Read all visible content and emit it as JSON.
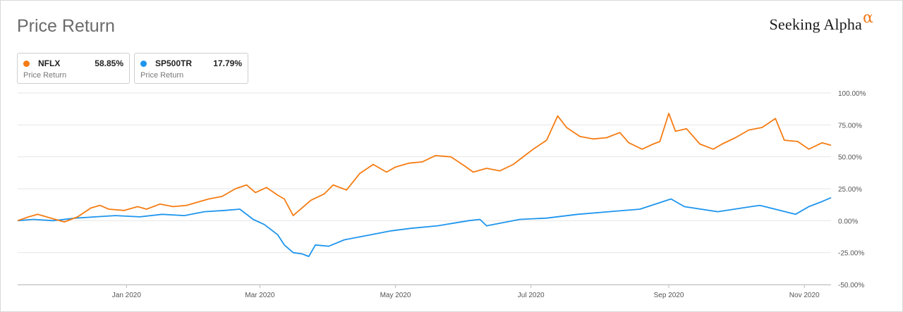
{
  "header": {
    "title": "Price Return",
    "logo_text": "Seeking Alpha",
    "logo_alpha": "α"
  },
  "legend": [
    {
      "symbol": "NFLX",
      "value": "58.85%",
      "subtitle": "Price Return",
      "color": "#f57c13"
    },
    {
      "symbol": "SP500TR",
      "value": "17.79%",
      "subtitle": "Price Return",
      "color": "#1e95ee"
    }
  ],
  "chart_data": {
    "type": "line",
    "title": "Price Return",
    "xlabel": "",
    "ylabel": "",
    "ylim": [
      -50,
      100
    ],
    "y_ticks": [
      100,
      75,
      50,
      25,
      0,
      -25,
      -50
    ],
    "y_tick_labels": [
      "100.00%",
      "75.00%",
      "50.00%",
      "25.00%",
      "0.00%",
      "-25.00%",
      "-50.00%"
    ],
    "y_axis_position": "right",
    "x_tick_labels": [
      "Jan 2020",
      "Mar 2020",
      "May 2020",
      "Jul 2020",
      "Sep 2020",
      "Nov 2020"
    ],
    "x_tick_dates": [
      "2020-01-01",
      "2020-03-01",
      "2020-05-01",
      "2020-07-01",
      "2020-09-01",
      "2020-11-01"
    ],
    "x_range": [
      "2019-11-13",
      "2020-11-13"
    ],
    "grid": "horizontal",
    "series": [
      {
        "name": "NFLX",
        "color": "#f57c13",
        "x": [
          "2019-11-13",
          "2019-11-18",
          "2019-11-22",
          "2019-11-28",
          "2019-12-04",
          "2019-12-10",
          "2019-12-16",
          "2019-12-20",
          "2019-12-24",
          "2019-12-31",
          "2020-01-06",
          "2020-01-10",
          "2020-01-16",
          "2020-01-22",
          "2020-01-28",
          "2020-02-03",
          "2020-02-07",
          "2020-02-13",
          "2020-02-19",
          "2020-02-24",
          "2020-02-28",
          "2020-03-04",
          "2020-03-09",
          "2020-03-12",
          "2020-03-16",
          "2020-03-20",
          "2020-03-24",
          "2020-03-30",
          "2020-04-03",
          "2020-04-09",
          "2020-04-15",
          "2020-04-21",
          "2020-04-27",
          "2020-05-01",
          "2020-05-07",
          "2020-05-13",
          "2020-05-19",
          "2020-05-26",
          "2020-06-01",
          "2020-06-05",
          "2020-06-11",
          "2020-06-17",
          "2020-06-23",
          "2020-06-29",
          "2020-07-02",
          "2020-07-08",
          "2020-07-13",
          "2020-07-17",
          "2020-07-23",
          "2020-07-29",
          "2020-08-04",
          "2020-08-10",
          "2020-08-14",
          "2020-08-20",
          "2020-08-25",
          "2020-08-28",
          "2020-09-01",
          "2020-09-04",
          "2020-09-09",
          "2020-09-15",
          "2020-09-21",
          "2020-09-25",
          "2020-10-01",
          "2020-10-07",
          "2020-10-13",
          "2020-10-19",
          "2020-10-23",
          "2020-10-29",
          "2020-11-03",
          "2020-11-09",
          "2020-11-13"
        ],
        "y": [
          0,
          3,
          5,
          2,
          -1,
          3,
          10,
          12,
          9,
          8,
          11,
          9,
          13,
          11,
          12,
          15,
          17,
          19,
          25,
          28,
          22,
          26,
          20,
          17,
          4,
          10,
          16,
          21,
          28,
          24,
          37,
          44,
          38,
          42,
          45,
          46,
          51,
          50,
          43,
          38,
          41,
          39,
          44,
          52,
          56,
          63,
          82,
          73,
          66,
          64,
          65,
          69,
          61,
          56,
          60,
          62,
          84,
          70,
          72,
          60,
          56,
          60,
          65,
          71,
          73,
          80,
          63,
          62,
          56,
          61,
          59
        ]
      },
      {
        "name": "SP500TR",
        "color": "#1e95ee",
        "x": [
          "2019-11-13",
          "2019-11-20",
          "2019-11-29",
          "2019-12-09",
          "2019-12-18",
          "2019-12-27",
          "2020-01-07",
          "2020-01-17",
          "2020-01-27",
          "2020-02-05",
          "2020-02-14",
          "2020-02-21",
          "2020-02-27",
          "2020-03-03",
          "2020-03-09",
          "2020-03-12",
          "2020-03-16",
          "2020-03-20",
          "2020-03-23",
          "2020-03-26",
          "2020-04-01",
          "2020-04-08",
          "2020-04-17",
          "2020-04-29",
          "2020-05-08",
          "2020-05-20",
          "2020-06-03",
          "2020-06-08",
          "2020-06-11",
          "2020-06-26",
          "2020-07-08",
          "2020-07-22",
          "2020-08-05",
          "2020-08-19",
          "2020-09-02",
          "2020-09-08",
          "2020-09-23",
          "2020-10-08",
          "2020-10-12",
          "2020-10-28",
          "2020-11-03",
          "2020-11-09",
          "2020-11-13"
        ],
        "y": [
          0,
          1,
          0,
          2,
          3,
          4,
          3,
          5,
          4,
          7,
          8,
          9,
          1,
          -3,
          -11,
          -19,
          -25,
          -26,
          -28,
          -19,
          -20,
          -15,
          -12,
          -8,
          -6,
          -4,
          0,
          1,
          -4,
          1,
          2,
          5,
          7,
          9,
          17,
          11,
          7,
          11,
          12,
          5,
          11,
          15,
          18
        ]
      }
    ]
  }
}
